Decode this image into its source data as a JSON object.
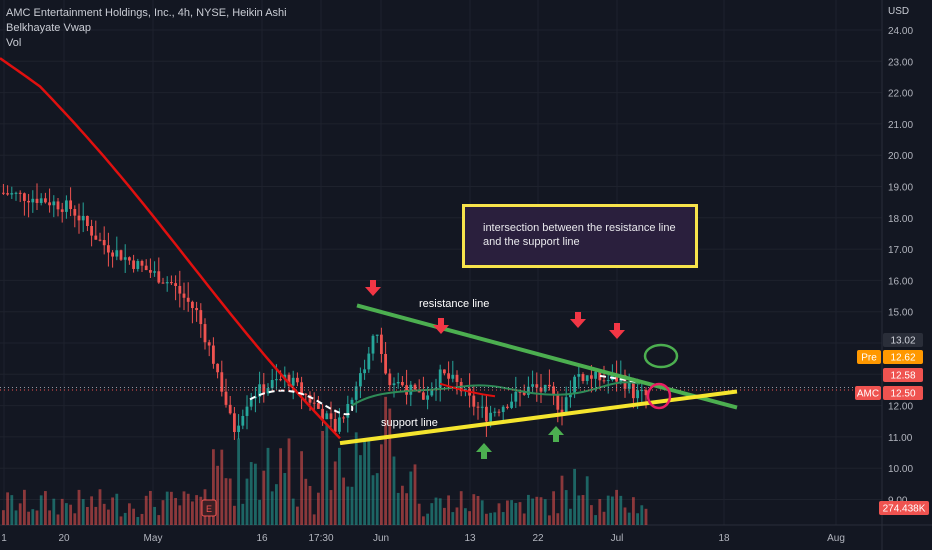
{
  "header": {
    "title": "AMC Entertainment Holdings, Inc., 4h, NYSE, Heikin Ashi",
    "indicator_1": "Belkhayate Vwap",
    "indicator_2": "Vol",
    "currency": "USD"
  },
  "annotation": {
    "text": "intersection between the resistance line and the support line"
  },
  "labels": {
    "resistance": "resistance line",
    "support": "support line"
  },
  "badges": {
    "pre_label": "Pre",
    "pre_value": "12.62",
    "hi_value": "13.02",
    "mid_value": "12.58",
    "amc_label": "AMC",
    "amc_value": "12.50",
    "vol_value": "274.438K"
  },
  "chart_data": {
    "type": "candlestick",
    "symbol": "AMC",
    "timeframe": "4h",
    "y_ticks": [
      "24.00",
      "23.00",
      "22.00",
      "21.00",
      "20.00",
      "19.00",
      "18.00",
      "17.00",
      "16.00",
      "15.00",
      "14.00",
      "13.00",
      "12.00",
      "11.00",
      "10.00",
      "9.00"
    ],
    "x_ticks": [
      "1",
      "20",
      "May",
      "16",
      "17:30",
      "Jun",
      "13",
      "22",
      "Jul",
      "18",
      "Aug"
    ],
    "ylim": [
      9.0,
      24.0
    ],
    "last_price": 12.5,
    "pre_market_price": 12.62,
    "resistance_line": {
      "from": 15.2,
      "to": 12.6
    },
    "support_line": {
      "from": 10.8,
      "to": 12.3
    },
    "colors": {
      "up": "#26a69a",
      "down": "#ef5350",
      "ma": "#e0100f",
      "vwap": "#2e8b57",
      "resistance": "#4caf50",
      "support": "#f5e52e",
      "background": "#131722"
    }
  }
}
